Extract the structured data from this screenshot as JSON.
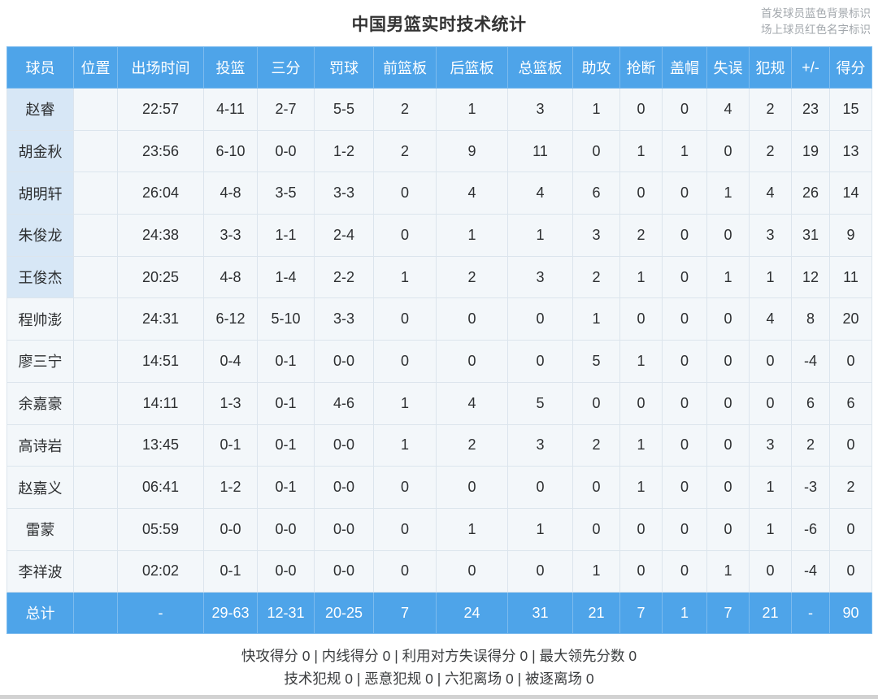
{
  "title": "中国男篮实时技术统计",
  "legend": {
    "starters_note": "首发球员蓝色背景标识",
    "oncourt_note": "场上球员红色名字标识"
  },
  "colors": {
    "header_bg": "#4ea4e9",
    "starter_row_name_bg": "#d7e7f6",
    "cell_bg": "#f3f7fa"
  },
  "table": {
    "columns": [
      "球员",
      "位置",
      "出场时间",
      "投篮",
      "三分",
      "罚球",
      "前篮板",
      "后篮板",
      "总篮板",
      "助攻",
      "抢断",
      "盖帽",
      "失误",
      "犯规",
      "+/-",
      "得分"
    ],
    "players": [
      {
        "name": "赵睿",
        "starter": true,
        "stats": [
          "",
          "22:57",
          "4-11",
          "2-7",
          "5-5",
          "2",
          "1",
          "3",
          "1",
          "0",
          "0",
          "4",
          "2",
          "23",
          "15"
        ]
      },
      {
        "name": "胡金秋",
        "starter": true,
        "stats": [
          "",
          "23:56",
          "6-10",
          "0-0",
          "1-2",
          "2",
          "9",
          "11",
          "0",
          "1",
          "1",
          "0",
          "2",
          "19",
          "13"
        ]
      },
      {
        "name": "胡明轩",
        "starter": true,
        "stats": [
          "",
          "26:04",
          "4-8",
          "3-5",
          "3-3",
          "0",
          "4",
          "4",
          "6",
          "0",
          "0",
          "1",
          "4",
          "26",
          "14"
        ]
      },
      {
        "name": "朱俊龙",
        "starter": true,
        "stats": [
          "",
          "24:38",
          "3-3",
          "1-1",
          "2-4",
          "0",
          "1",
          "1",
          "3",
          "2",
          "0",
          "0",
          "3",
          "31",
          "9"
        ]
      },
      {
        "name": "王俊杰",
        "starter": true,
        "stats": [
          "",
          "20:25",
          "4-8",
          "1-4",
          "2-2",
          "1",
          "2",
          "3",
          "2",
          "1",
          "0",
          "1",
          "1",
          "12",
          "11"
        ]
      },
      {
        "name": "程帅澎",
        "starter": false,
        "stats": [
          "",
          "24:31",
          "6-12",
          "5-10",
          "3-3",
          "0",
          "0",
          "0",
          "1",
          "0",
          "0",
          "0",
          "4",
          "8",
          "20"
        ]
      },
      {
        "name": "廖三宁",
        "starter": false,
        "stats": [
          "",
          "14:51",
          "0-4",
          "0-1",
          "0-0",
          "0",
          "0",
          "0",
          "5",
          "1",
          "0",
          "0",
          "0",
          "-4",
          "0"
        ]
      },
      {
        "name": "余嘉豪",
        "starter": false,
        "stats": [
          "",
          "14:11",
          "1-3",
          "0-1",
          "4-6",
          "1",
          "4",
          "5",
          "0",
          "0",
          "0",
          "0",
          "0",
          "6",
          "6"
        ]
      },
      {
        "name": "高诗岩",
        "starter": false,
        "stats": [
          "",
          "13:45",
          "0-1",
          "0-1",
          "0-0",
          "1",
          "2",
          "3",
          "2",
          "1",
          "0",
          "0",
          "3",
          "2",
          "0"
        ]
      },
      {
        "name": "赵嘉义",
        "starter": false,
        "stats": [
          "",
          "06:41",
          "1-2",
          "0-1",
          "0-0",
          "0",
          "0",
          "0",
          "0",
          "1",
          "0",
          "0",
          "1",
          "-3",
          "2"
        ]
      },
      {
        "name": "雷蒙",
        "starter": false,
        "stats": [
          "",
          "05:59",
          "0-0",
          "0-0",
          "0-0",
          "0",
          "1",
          "1",
          "0",
          "0",
          "0",
          "0",
          "1",
          "-6",
          "0"
        ]
      },
      {
        "name": "李祥波",
        "starter": false,
        "stats": [
          "",
          "02:02",
          "0-1",
          "0-0",
          "0-0",
          "0",
          "0",
          "0",
          "1",
          "0",
          "0",
          "1",
          "0",
          "-4",
          "0"
        ]
      }
    ],
    "totals": {
      "label": "总计",
      "stats": [
        "",
        "-",
        "29-63",
        "12-31",
        "20-25",
        "7",
        "24",
        "31",
        "21",
        "7",
        "1",
        "7",
        "21",
        "-",
        "90"
      ]
    }
  },
  "footer": {
    "line1": "快攻得分 0 | 内线得分 0 | 利用对方失误得分 0 | 最大领先分数 0",
    "line2": "技术犯规 0 | 恶意犯规 0 | 六犯离场 0 | 被逐离场 0"
  }
}
